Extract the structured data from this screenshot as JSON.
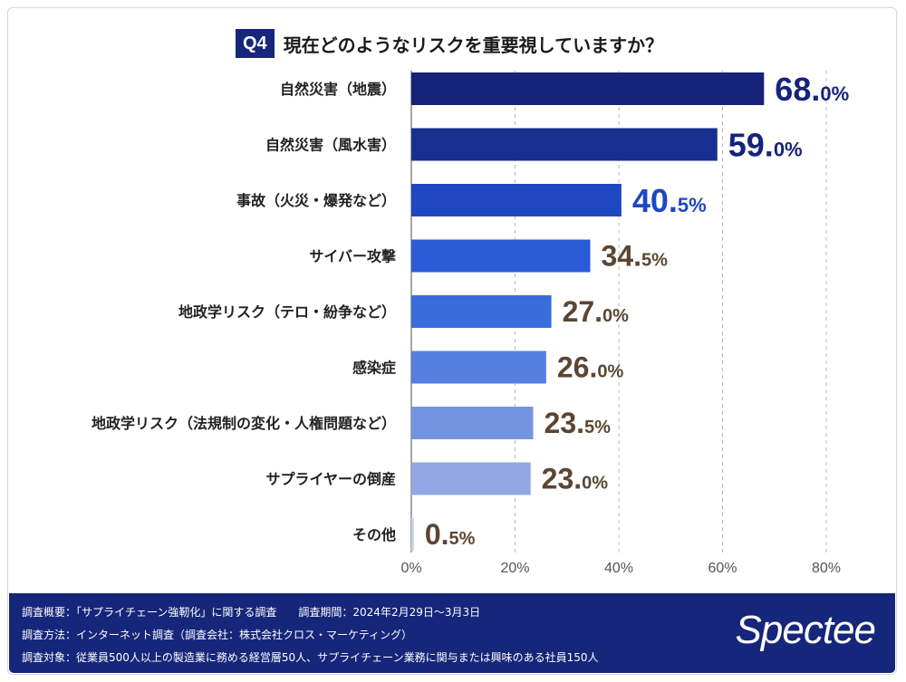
{
  "header": {
    "badge": "Q4",
    "question": "現在どのようなリスクを重要視していますか？"
  },
  "chart_data": {
    "type": "bar",
    "orientation": "horizontal",
    "categories": [
      "自然災害（地震）",
      "自然災害（風水害）",
      "事故（火災・爆発など）",
      "サイバー攻撃",
      "地政学リスク（テロ・紛争など）",
      "感染症",
      "地政学リスク（法規制の変化・人権問題など）",
      "サプライヤーの倒産",
      "その他"
    ],
    "values": [
      68.0,
      59.0,
      40.5,
      34.5,
      27.0,
      26.0,
      23.5,
      23.0,
      0.5
    ],
    "value_labels": [
      {
        "int": "68.",
        "dec": "0%"
      },
      {
        "int": "59.",
        "dec": "0%"
      },
      {
        "int": "40.",
        "dec": "5%"
      },
      {
        "int": "34.",
        "dec": "5%"
      },
      {
        "int": "27.",
        "dec": "0%"
      },
      {
        "int": "26.",
        "dec": "0%"
      },
      {
        "int": "23.",
        "dec": "5%"
      },
      {
        "int": "23.",
        "dec": "0%"
      },
      {
        "int": "0.",
        "dec": "5%"
      }
    ],
    "bar_colors": [
      "#15237a",
      "#182f8f",
      "#1f47c2",
      "#2b5bd6",
      "#3a6cdc",
      "#5380e0",
      "#7494e2",
      "#92a7e3",
      "#c6cfee"
    ],
    "label_colors": [
      "#15237a",
      "#15237a",
      "#1f47c2",
      "#5a4632",
      "#5a4632",
      "#5a4632",
      "#5a4632",
      "#5a4632",
      "#5a4632"
    ],
    "xticks": [
      "0%",
      "20%",
      "40%",
      "60%",
      "80%"
    ],
    "xlim": [
      0,
      80
    ],
    "grid": true
  },
  "footer": {
    "line1": "調査概要：「サプライチェーン強靭化」に関する調査　　調査期間：2024年2月29日～3月3日",
    "line2": "調査方法：インターネット調査（調査会社：株式会社クロス・マーケティング）",
    "line3": "調査対象：従業員500人以上の製造業に務める経営層50人、サプライチェーン業務に関与または興味のある社員150人",
    "brand": "Spectee"
  }
}
